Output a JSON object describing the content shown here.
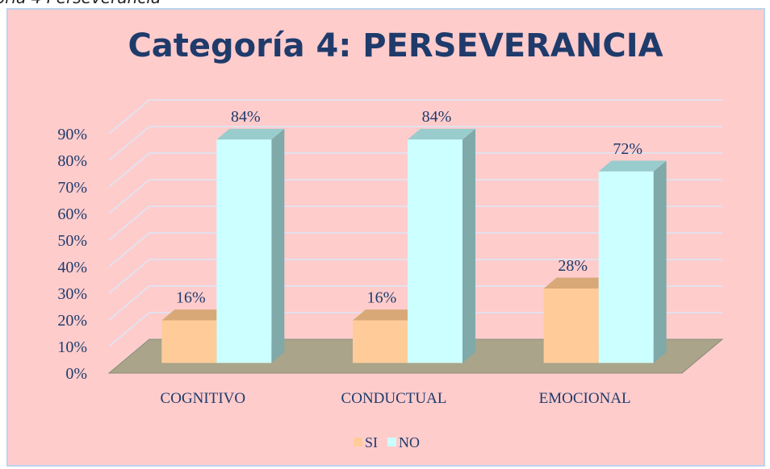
{
  "caption": "oría 4 Perseverancia",
  "chart_data": {
    "type": "bar3d",
    "title": "Categoría 4: PERSEVERANCIA",
    "categories": [
      "COGNITIVO",
      "CONDUCTUAL",
      "EMOCIONAL"
    ],
    "series": [
      {
        "name": "SI",
        "color": "#ffcc99",
        "values": [
          16,
          16,
          28
        ],
        "value_labels": [
          "16%",
          "16%",
          "28%"
        ]
      },
      {
        "name": "NO",
        "color": "#ccffff",
        "values": [
          84,
          84,
          72
        ],
        "value_labels": [
          "84%",
          "84%",
          "72%"
        ]
      }
    ],
    "ylim": [
      0,
      90
    ],
    "yticks": [
      {
        "value": 0,
        "label": "0%"
      },
      {
        "value": 10,
        "label": "10%"
      },
      {
        "value": 20,
        "label": "20%"
      },
      {
        "value": 30,
        "label": "30%"
      },
      {
        "value": 40,
        "label": "40%"
      },
      {
        "value": 50,
        "label": "50%"
      },
      {
        "value": 60,
        "label": "60%"
      },
      {
        "value": 70,
        "label": "70%"
      },
      {
        "value": 80,
        "label": "80%"
      },
      {
        "value": 90,
        "label": "90%"
      }
    ],
    "grid": true,
    "legend": "bottom"
  }
}
